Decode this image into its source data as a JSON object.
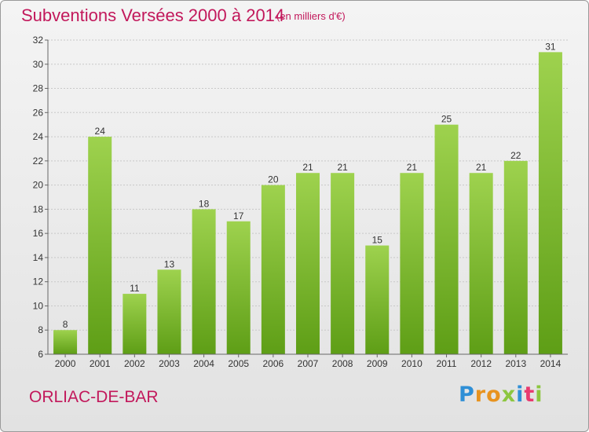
{
  "header": {
    "title": "Subventions Versées 2000 à 2014",
    "subtitle": "(en milliers d'€)"
  },
  "footer": {
    "commune": "ORLIAC-DE-BAR",
    "logo": {
      "letters": [
        "P",
        "r",
        "o",
        "x",
        "i",
        "t",
        "i"
      ],
      "colors": [
        "#2f8fd6",
        "#e8931f",
        "#e8931f",
        "#8cc63f",
        "#2f8fd6",
        "#e83a6f",
        "#8cc63f"
      ]
    }
  },
  "chart_data": {
    "type": "bar",
    "title": "Subventions Versées 2000 à 2014",
    "subtitle": "(en milliers d'€)",
    "categories": [
      "2000",
      "2001",
      "2002",
      "2003",
      "2004",
      "2005",
      "2006",
      "2007",
      "2008",
      "2009",
      "2010",
      "2011",
      "2012",
      "2013",
      "2014"
    ],
    "values": [
      8,
      24,
      11,
      13,
      18,
      17,
      20,
      21,
      21,
      15,
      21,
      25,
      21,
      22,
      31
    ],
    "ylim": [
      6,
      32
    ],
    "yticks": [
      6,
      8,
      10,
      12,
      14,
      16,
      18,
      20,
      22,
      24,
      26,
      28,
      30,
      32
    ],
    "grid": true,
    "colors": {
      "bar_top": "#9ed24e",
      "bar_bottom": "#5e9e16",
      "grid": "#c8c8c8",
      "axis": "#666666"
    }
  }
}
